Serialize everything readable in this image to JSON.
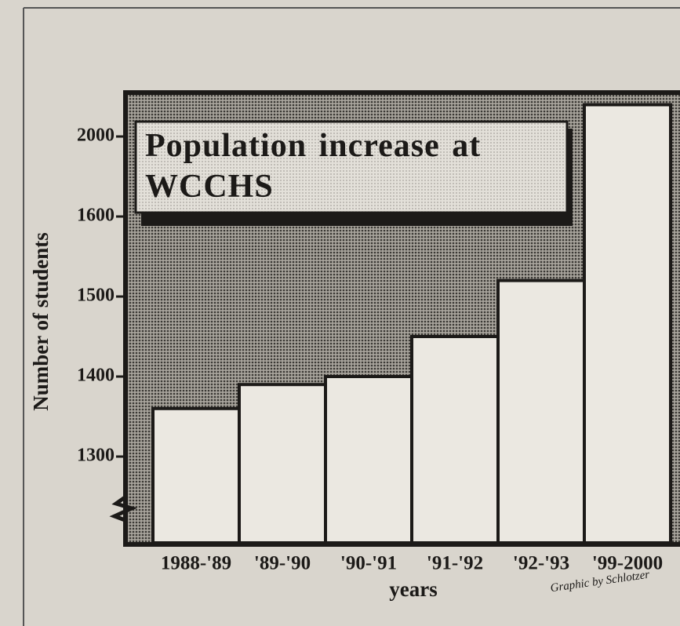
{
  "chart_data": {
    "type": "bar",
    "title": "Population increase at WCCHS",
    "y_label": "Number of students",
    "x_label": "years",
    "annotation": "Graphic by Schlotzer",
    "categories": [
      "1988-'89",
      "'89-'90",
      "'90-'91",
      "'91-'92",
      "'92-'93",
      "'99-2000"
    ],
    "values": [
      1360,
      1390,
      1400,
      1450,
      1520,
      2150
    ],
    "color": "#ebe8e1",
    "ylim": [
      1200,
      2200
    ],
    "yticks": [
      1300,
      1400,
      1500,
      1600,
      2000
    ],
    "broken_axis": true
  }
}
